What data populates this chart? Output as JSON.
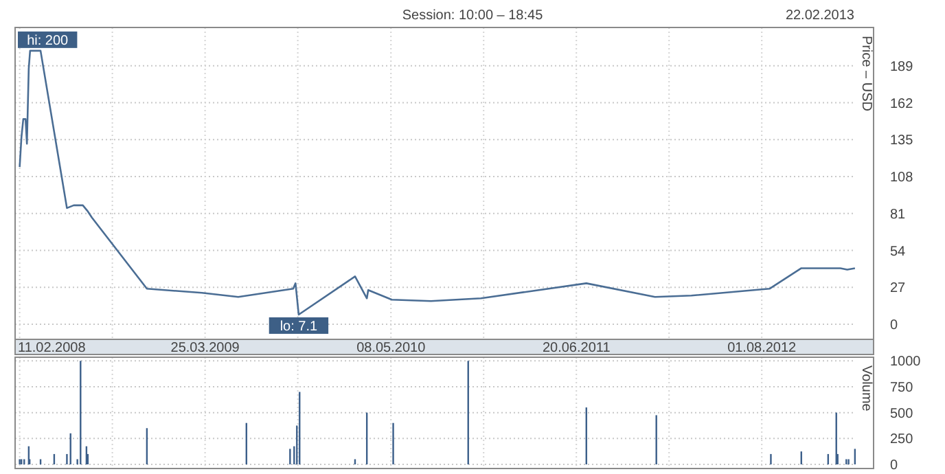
{
  "chart_data": [
    {
      "type": "line",
      "title": "Session: 10:00 – 18:45",
      "ylabel": "Price – USD",
      "annotations": [
        "22.02.2013",
        {
          "text": "hi: 200",
          "x": "2008-03-05",
          "y": 200
        },
        {
          "text": "lo: 7.1",
          "x": "2009-10-17",
          "y": 7.1
        }
      ],
      "series": [
        {
          "color": "#4a6d94",
          "x": [
            "2008-02-11",
            "2008-02-15",
            "2008-02-19",
            "2008-02-24",
            "2008-02-27",
            "2008-03-02",
            "2008-03-05",
            "2008-03-28",
            "2008-05-25",
            "2008-06-09",
            "2008-06-29",
            "2008-07-09",
            "2008-07-19",
            "2008-11-17",
            "2009-03-18",
            "2009-06-06",
            "2009-10-05",
            "2009-10-10",
            "2009-10-17",
            "2010-02-18",
            "2010-03-16",
            "2010-03-19",
            "2010-05-10",
            "2010-08-04",
            "2010-11-22",
            "2011-07-12",
            "2011-12-10",
            "2012-02-28",
            "2012-08-18",
            "2012-10-27",
            "2013-01-21",
            "2013-02-05",
            "2013-02-22"
          ],
          "values": [
            115,
            137,
            150,
            150,
            132,
            187,
            200,
            200,
            85,
            87,
            87,
            83,
            78,
            26,
            23,
            20,
            26,
            30,
            7.1,
            35,
            19,
            25,
            18,
            17,
            19,
            30,
            20,
            21,
            26,
            41,
            41,
            40,
            41
          ]
        }
      ],
      "xlim": [
        "2008-02-01",
        "2013-04-04"
      ],
      "xticks": [
        {
          "value": "2008-02-11",
          "label": "11.02.2008"
        },
        {
          "value": "2008-09-02",
          "label": null
        },
        {
          "value": "2009-03-25",
          "label": "25.03.2009"
        },
        {
          "value": "2009-10-15",
          "label": null
        },
        {
          "value": "2010-05-08",
          "label": "08.05.2010"
        },
        {
          "value": "2010-11-28",
          "label": null
        },
        {
          "value": "2011-06-20",
          "label": "20.06.2011"
        },
        {
          "value": "2012-01-10",
          "label": null
        },
        {
          "value": "2012-08-01",
          "label": "01.08.2012"
        }
      ],
      "ylim": [
        -11,
        217
      ],
      "yticks": [
        0,
        27,
        54,
        81,
        108,
        135,
        162,
        189
      ],
      "grid": true,
      "marker": "none",
      "line_style": "solid"
    },
    {
      "type": "bar",
      "ylabel": "Volume",
      "x": [
        "2008-02-11",
        "2008-02-15",
        "2008-02-21",
        "2008-03-02",
        "2008-03-04",
        "2008-03-28",
        "2008-04-27",
        "2008-05-25",
        "2008-06-02",
        "2008-06-17",
        "2008-06-24",
        "2008-07-07",
        "2008-07-10",
        "2008-11-17",
        "2009-06-24",
        "2009-09-28",
        "2009-10-07",
        "2009-10-13",
        "2009-10-19",
        "2010-02-18",
        "2010-03-16",
        "2010-05-13",
        "2010-10-25",
        "2011-07-12",
        "2011-12-13",
        "2012-08-21",
        "2012-10-27",
        "2012-12-25",
        "2013-01-12",
        "2013-01-15",
        "2013-02-03",
        "2013-02-08",
        "2013-02-22"
      ],
      "values": [
        50,
        50,
        50,
        175,
        50,
        50,
        100,
        100,
        300,
        50,
        1000,
        175,
        100,
        350,
        400,
        150,
        175,
        375,
        700,
        50,
        500,
        400,
        1000,
        550,
        475,
        100,
        125,
        100,
        500,
        100,
        50,
        50,
        150
      ],
      "color": "#3c5f8a",
      "xlim": [
        "2008-02-01",
        "2013-04-04"
      ],
      "xticks": [
        {
          "value": "2008-02-11",
          "label": null
        },
        {
          "value": "2008-09-02",
          "label": null
        },
        {
          "value": "2009-03-25",
          "label": null
        },
        {
          "value": "2009-10-15",
          "label": null
        },
        {
          "value": "2010-05-08",
          "label": null
        },
        {
          "value": "2010-11-28",
          "label": null
        },
        {
          "value": "2011-06-20",
          "label": null
        },
        {
          "value": "2012-01-10",
          "label": null
        },
        {
          "value": "2012-08-01",
          "label": null
        }
      ],
      "ylim": [
        0,
        1035
      ],
      "yticks": [
        0,
        250,
        500,
        750,
        1000
      ],
      "grid": true,
      "tick_labels": "y"
    }
  ]
}
